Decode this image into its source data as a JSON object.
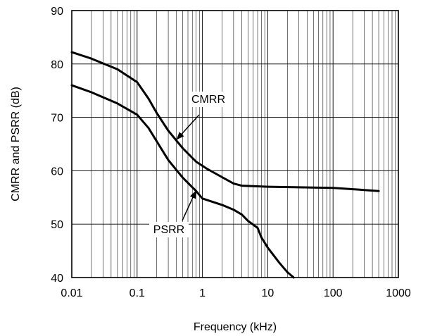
{
  "chart_data": {
    "type": "line",
    "title": "",
    "xlabel": "Frequency (kHz)",
    "ylabel": "CMRR and PSRR (dB)",
    "xscale": "log",
    "xlim": [
      0.01,
      1000
    ],
    "ylim": [
      40,
      90
    ],
    "x_ticks": [
      0.01,
      0.1,
      1,
      10,
      100,
      1000
    ],
    "x_tick_labels": [
      "0.01",
      "0.1",
      "1",
      "10",
      "100",
      "1000"
    ],
    "y_ticks": [
      40,
      50,
      60,
      70,
      80,
      90
    ],
    "y_tick_labels": [
      "40",
      "50",
      "60",
      "70",
      "80",
      "90"
    ],
    "grid": true,
    "series": [
      {
        "name": "CMRR",
        "x": [
          0.01,
          0.02,
          0.05,
          0.1,
          0.15,
          0.2,
          0.3,
          0.5,
          0.8,
          1.2,
          2,
          3,
          4,
          10,
          30,
          100,
          300,
          500
        ],
        "y": [
          82.2,
          81.0,
          79.0,
          76.6,
          73.5,
          70.8,
          67.5,
          64.2,
          61.7,
          60.3,
          58.8,
          57.6,
          57.2,
          57.0,
          56.9,
          56.8,
          56.4,
          56.2
        ]
      },
      {
        "name": "PSRR",
        "x": [
          0.01,
          0.02,
          0.05,
          0.1,
          0.15,
          0.2,
          0.3,
          0.5,
          0.8,
          1,
          2,
          3,
          4,
          5,
          6,
          7,
          8,
          10,
          15,
          20,
          25
        ],
        "y": [
          76.0,
          74.7,
          72.6,
          70.5,
          68.0,
          65.5,
          62.0,
          58.7,
          56.2,
          54.8,
          53.6,
          52.7,
          51.8,
          50.6,
          49.9,
          49.3,
          47.5,
          45.6,
          42.8,
          41.0,
          40.0
        ]
      }
    ],
    "annotations": [
      {
        "text": "CMRR",
        "series": "CMRR",
        "arrow_to": [
          0.4,
          65.8
        ]
      },
      {
        "text": "PSRR",
        "series": "PSRR",
        "arrow_to": [
          0.8,
          56.3
        ]
      }
    ]
  }
}
